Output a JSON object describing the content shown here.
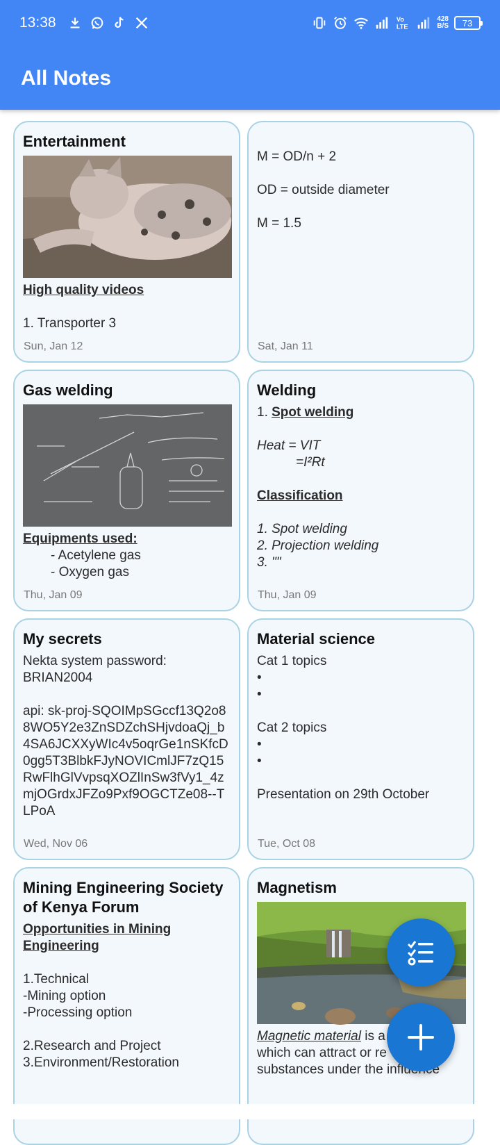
{
  "status_bar": {
    "time": "13:38",
    "net_speed_value": "428",
    "net_speed_unit": "B/S",
    "battery": "73"
  },
  "app_bar": {
    "title": "All Notes"
  },
  "notes": [
    {
      "title": "Entertainment",
      "image": "kitten-photo",
      "heading": "High quality videos",
      "lines": [
        "1. Transporter 3"
      ],
      "date": "Sun, Jan 12"
    },
    {
      "title": "",
      "lines": [
        "M = OD/n + 2",
        "OD = outside diameter",
        "M = 1.5"
      ],
      "date": "Sat, Jan 11"
    },
    {
      "title": "Gas welding",
      "image": "chalkboard-photo",
      "heading": "Equipments used:",
      "lines": [
        "- Acetylene gas",
        "- Oxygen gas"
      ],
      "date": "Thu, Jan 09"
    },
    {
      "title": "Welding",
      "item1_prefix": "1. ",
      "item1_heading": "Spot welding",
      "formula1": "Heat = VIT",
      "formula2": "=I²Rt",
      "heading2": "Classification",
      "lines": [
        "1. Spot welding",
        "2. Projection welding",
        "3. \"\""
      ],
      "date": "Thu, Jan 09"
    },
    {
      "title": "My secrets",
      "lines": [
        "Nekta system password:",
        "BRIAN2004"
      ],
      "api_text": "api: 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",
      "date": "Wed, Nov 06"
    },
    {
      "title": "Material science",
      "lines": [
        "Cat 1 topics",
        "•",
        "•",
        "Cat 2 topics",
        "•",
        "•",
        "Presentation on 29th October"
      ],
      "date": "Tue, Oct 08"
    },
    {
      "title": "Mining Engineering Society of Kenya Forum",
      "heading": "Opportunities in Mining Engineering ",
      "lines": [
        "1.Technical",
        "-Mining option",
        "-Processing option",
        "2.Research and Project",
        "3.Environment/Restoration"
      ]
    },
    {
      "title": "Magnetism",
      "image": "stream-landscape-photo",
      "italic_heading": "Magnetic material",
      "lines": [
        " is a",
        "which can attract or re",
        "substances under the influence"
      ]
    }
  ],
  "fab": {
    "checklist_icon": "checklist-icon",
    "add_icon": "plus-icon",
    "color": "#1976d2"
  },
  "colors": {
    "app_bar": "#4285f4",
    "card_bg": "#f3f8fd",
    "card_border": "#a9d3e4"
  }
}
